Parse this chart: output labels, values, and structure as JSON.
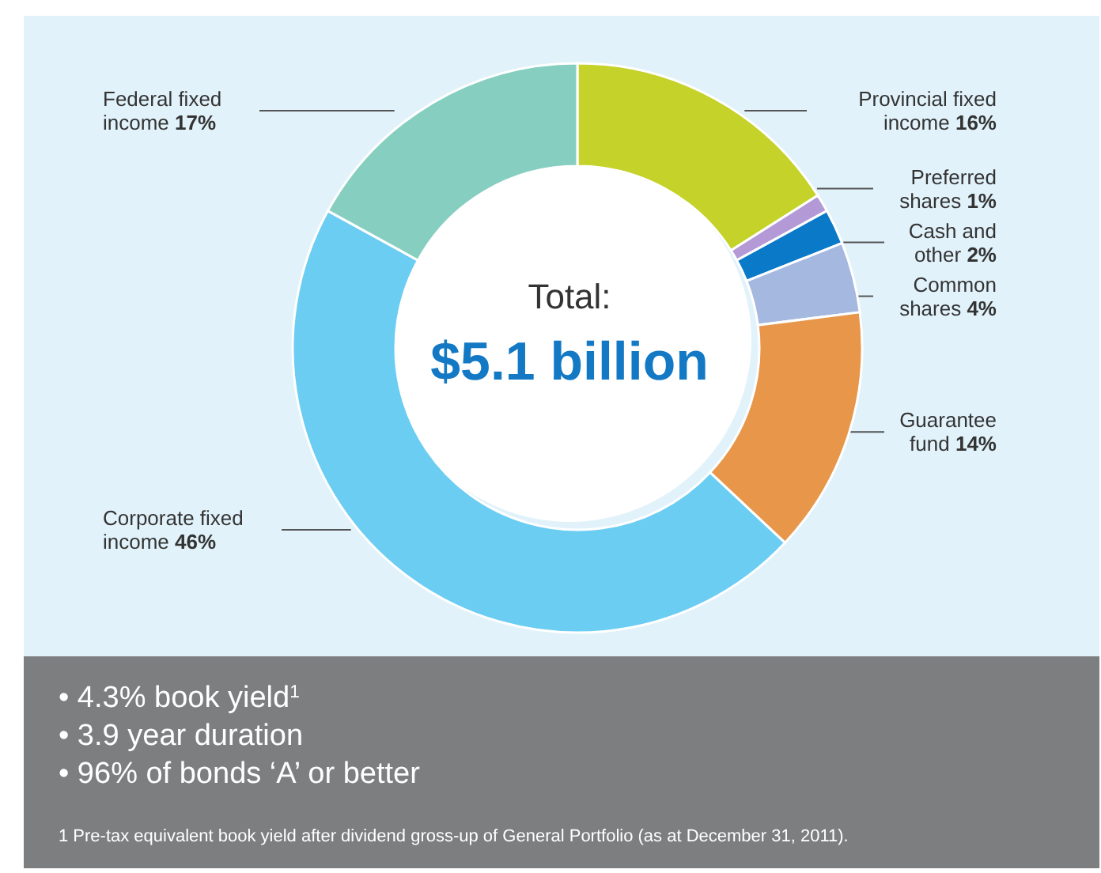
{
  "chart_data": {
    "type": "donut",
    "categories": [
      "Provincial fixed income",
      "Preferred shares",
      "Cash and other",
      "Common shares",
      "Guarantee fund",
      "Corporate fixed income",
      "Federal fixed income"
    ],
    "values": [
      16,
      1,
      2,
      4,
      14,
      46,
      17
    ],
    "value_labels": [
      "16%",
      "1%",
      "2%",
      "4%",
      "14%",
      "46%",
      "17%"
    ],
    "colors": [
      "#c4d22a",
      "#b39ad6",
      "#0a79c8",
      "#a5b9e0",
      "#e8964a",
      "#6ccdf3",
      "#86cfc0"
    ],
    "legend": false,
    "annotations": [
      "Total:",
      "$5.1 billion",
      "• 4.3% book yield$^{1}$",
      "• 3.9 year duration",
      "• 96% of bonds ‘A’ or better",
      "1  Pre-tax equivalent book yield after dividend gross-up of General Portfolio (as at December 31, 2011)."
    ]
  }
}
